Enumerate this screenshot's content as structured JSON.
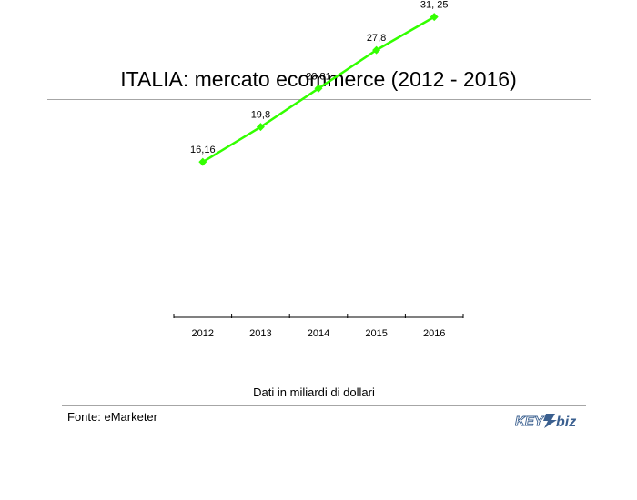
{
  "page": {
    "title": "ITALIA: mercato ecommerce (2012 - 2016)",
    "note": "Dati in miliardi di dollari",
    "source": "Fonte: eMarketer",
    "logo_text": "KEY4biz"
  },
  "chart_data": {
    "type": "line",
    "title": "ITALIA: mercato ecommerce (2012 - 2016)",
    "x": [
      "2012",
      "2013",
      "2014",
      "2015",
      "2016"
    ],
    "series": [
      {
        "values": [
          16.16,
          19.8,
          23.81,
          27.8,
          31.25
        ],
        "labels": [
          "16,16",
          "19,8",
          "23,81",
          "27,8",
          "31, 25"
        ],
        "color": "#33ff00"
      }
    ],
    "ylim": [
      0,
      35
    ],
    "ylabel": "Dati in miliardi di dollari",
    "grid": false,
    "legend": "none"
  }
}
